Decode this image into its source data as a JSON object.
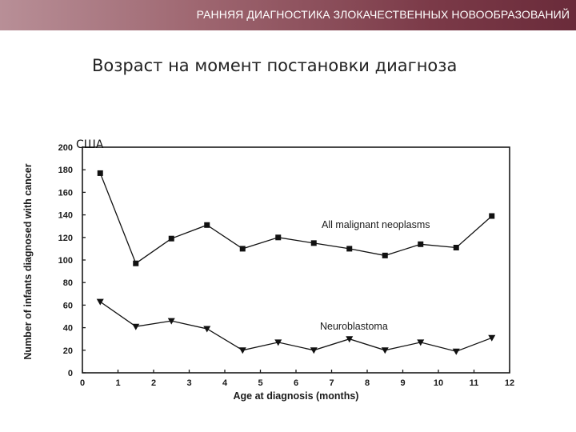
{
  "header": {
    "title": "РАННЯЯ ДИАГНОСТИКА ЗЛОКАЧЕСТВЕННЫХ НОВООБРАЗОВАНИЙ",
    "gradient_colors": [
      "#b88f97",
      "#6a2b3a"
    ]
  },
  "slide": {
    "title": "Возраст на момент постановки диагноза",
    "country_label": "США"
  },
  "chart_data": {
    "type": "line",
    "xlabel": "Age at diagnosis (months)",
    "ylabel": "Number of infants diagnosed with cancer",
    "xlim": [
      0,
      12
    ],
    "ylim": [
      0,
      200
    ],
    "x_ticks": [
      0,
      1,
      2,
      3,
      4,
      5,
      6,
      7,
      8,
      9,
      10,
      11,
      12
    ],
    "y_ticks": [
      0,
      20,
      40,
      60,
      80,
      100,
      120,
      140,
      160,
      180,
      200
    ],
    "grid": false,
    "series": [
      {
        "name": "All malignant neoplasms",
        "marker": "square",
        "color": "#111111",
        "x": [
          0.5,
          1.5,
          2.5,
          3.5,
          4.5,
          5.5,
          6.5,
          7.5,
          8.5,
          9.5,
          10.5,
          11.5
        ],
        "values": [
          177,
          97,
          119,
          131,
          110,
          120,
          115,
          110,
          104,
          114,
          111,
          139
        ]
      },
      {
        "name": "Neuroblastoma",
        "marker": "triangle-down",
        "color": "#111111",
        "x": [
          0.5,
          1.5,
          2.5,
          3.5,
          4.5,
          5.5,
          6.5,
          7.5,
          8.5,
          9.5,
          10.5,
          11.5
        ],
        "values": [
          63,
          41,
          46,
          39,
          20,
          27,
          20,
          30,
          20,
          27,
          19,
          31
        ]
      }
    ]
  }
}
